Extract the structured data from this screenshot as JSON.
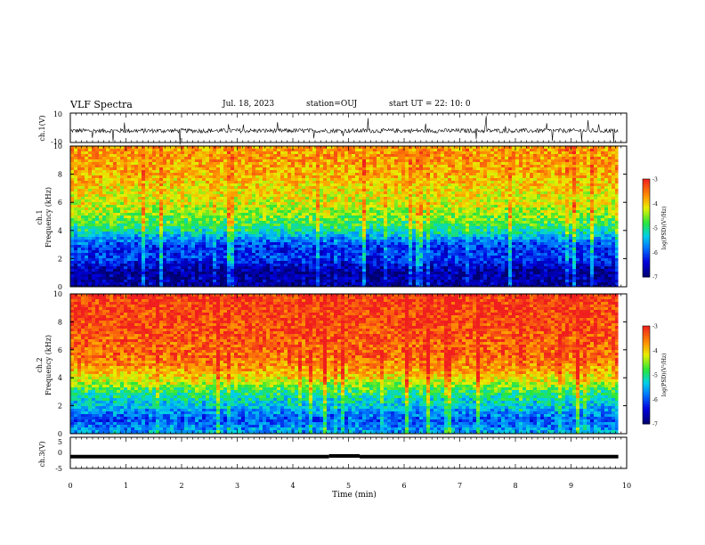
{
  "header": {
    "title": "VLF Spectra",
    "date": "Jul. 18, 2023",
    "station": "station=OUJ",
    "start": "start UT =  22: 10: 0"
  },
  "chart_data": [
    {
      "type": "line",
      "panel": "ch1-waveform",
      "ylabel": "ch.1(V)",
      "ylim": [
        -10,
        10
      ],
      "y_ticks": [
        "10",
        "-10"
      ],
      "xlim": [
        0,
        10
      ],
      "baseline": -2,
      "description_series": "noisy broadband amplitude around -2 V with spikes"
    },
    {
      "type": "heatmap",
      "panel": "ch1-spectrogram",
      "ylabel": "ch.1\nFrequency (kHz)",
      "ylabel_top": "ch.1",
      "ylabel_bottom": "Frequency (kHz)",
      "ylim": [
        0,
        10
      ],
      "xlim": [
        0,
        9.85
      ],
      "y_ticks": [
        "0",
        "2",
        "4",
        "6",
        "8",
        "10"
      ],
      "colorbar": {
        "label": "log(PSD)(V²/Hz)",
        "ticks": [
          "-3",
          "-4",
          "-5",
          "-6",
          "-7"
        ],
        "range": [
          -7,
          -3
        ]
      },
      "band_profile": [
        {
          "f": 0.0,
          "v": -6.9
        },
        {
          "f": 0.5,
          "v": -6.8
        },
        {
          "f": 1.0,
          "v": -6.9
        },
        {
          "f": 1.5,
          "v": -6.6
        },
        {
          "f": 2.0,
          "v": -6.2
        },
        {
          "f": 2.5,
          "v": -6.3
        },
        {
          "f": 3.0,
          "v": -6.2
        },
        {
          "f": 3.5,
          "v": -5.7
        },
        {
          "f": 4.0,
          "v": -5.2
        },
        {
          "f": 4.5,
          "v": -4.9
        },
        {
          "f": 5.0,
          "v": -4.7
        },
        {
          "f": 6.0,
          "v": -4.3
        },
        {
          "f": 7.0,
          "v": -4.1
        },
        {
          "f": 8.0,
          "v": -3.9
        },
        {
          "f": 9.0,
          "v": -3.8
        },
        {
          "f": 10.0,
          "v": -3.8
        }
      ]
    },
    {
      "type": "heatmap",
      "panel": "ch2-spectrogram",
      "ylabel": "ch.2\nFrequency (kHz)",
      "ylabel_top": "ch.2",
      "ylabel_bottom": "Frequency (kHz)",
      "ylim": [
        0,
        10
      ],
      "xlim": [
        0,
        9.85
      ],
      "y_ticks": [
        "0",
        "2",
        "4",
        "6",
        "8",
        "10"
      ],
      "colorbar": {
        "label": "log(PSD)(V²/Hz)",
        "ticks": [
          "-3",
          "-4",
          "-5",
          "-6",
          "-7"
        ],
        "range": [
          -7,
          -3
        ]
      },
      "band_profile": [
        {
          "f": 0.0,
          "v": -5.6
        },
        {
          "f": 0.5,
          "v": -5.9
        },
        {
          "f": 1.0,
          "v": -6.1
        },
        {
          "f": 1.5,
          "v": -5.8
        },
        {
          "f": 2.0,
          "v": -5.5
        },
        {
          "f": 2.5,
          "v": -5.3
        },
        {
          "f": 3.0,
          "v": -5.0
        },
        {
          "f": 3.5,
          "v": -4.6
        },
        {
          "f": 4.0,
          "v": -4.2
        },
        {
          "f": 5.0,
          "v": -3.7
        },
        {
          "f": 6.0,
          "v": -3.5
        },
        {
          "f": 7.0,
          "v": -3.4
        },
        {
          "f": 8.0,
          "v": -3.3
        },
        {
          "f": 10.0,
          "v": -3.2
        }
      ]
    },
    {
      "type": "line",
      "panel": "ch3-waveform",
      "ylabel": "ch.3(V)",
      "ylim": [
        -5,
        5
      ],
      "y_ticks": [
        "5",
        "0",
        "-5"
      ],
      "xlim": [
        0,
        10
      ],
      "segments": [
        {
          "x": [
            0,
            4.65
          ],
          "y": -1.2
        },
        {
          "x": [
            4.65,
            5.2
          ],
          "y": -1.0
        },
        {
          "x": [
            5.2,
            9.85
          ],
          "y": -1.2
        }
      ]
    }
  ],
  "xaxis": {
    "label": "Time (min)",
    "ticks": [
      "0",
      "1",
      "2",
      "3",
      "4",
      "5",
      "6",
      "7",
      "8",
      "9",
      "10"
    ]
  },
  "colors": {
    "blue": "#0000c8",
    "cyan": "#00c8ff",
    "green": "#20e040",
    "yellow": "#f0f000",
    "red": "#f02020"
  }
}
